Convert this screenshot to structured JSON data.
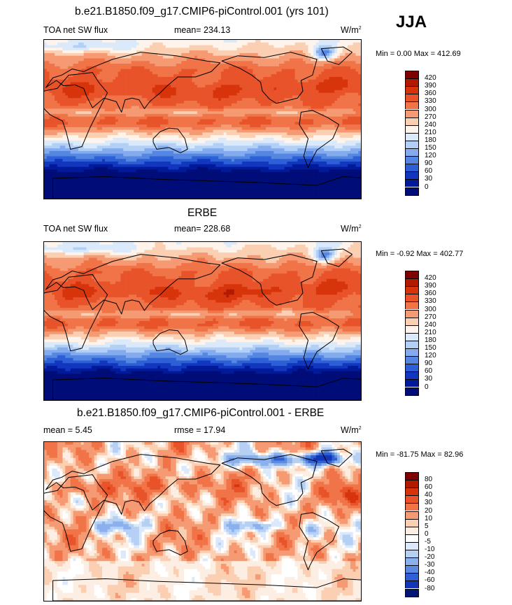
{
  "season": "JJA",
  "panels": [
    {
      "title": "b.e21.B1850.f09_g17.CMIP6-piControl.001 (yrs 101)",
      "left_label": "TOA net SW flux",
      "center_label": "mean= 234.13",
      "units_base": "W/m",
      "units_exp": "2",
      "minmax": "Min =   0.00 Max = 412.69",
      "levels": [
        "420",
        "390",
        "360",
        "330",
        "300",
        "270",
        "240",
        "210",
        "180",
        "150",
        "120",
        "90",
        "60",
        "30",
        "0"
      ],
      "palette": "abs"
    },
    {
      "title": "ERBE",
      "left_label": "TOA net SW flux",
      "center_label": "mean= 228.68",
      "units_base": "W/m",
      "units_exp": "2",
      "minmax": "Min = -0.92 Max = 402.77",
      "levels": [
        "420",
        "390",
        "360",
        "330",
        "300",
        "270",
        "240",
        "210",
        "180",
        "150",
        "120",
        "90",
        "60",
        "30",
        "0"
      ],
      "palette": "abs"
    },
    {
      "title": "b.e21.B1850.f09_g17.CMIP6-piControl.001 - ERBE",
      "left_label": "mean =   5.45",
      "center_label": "rmse =  17.94",
      "units_base": "W/m",
      "units_exp": "2",
      "minmax": "Min = -81.75 Max =  82.96",
      "levels": [
        "80",
        "60",
        "40",
        "30",
        "20",
        "10",
        "5",
        "0",
        "-5",
        "-10",
        "-20",
        "-30",
        "-40",
        "-60",
        "-80"
      ],
      "palette": "diff"
    }
  ],
  "colors": {
    "abs": [
      "#7f0000",
      "#b21a00",
      "#d8340c",
      "#e8532a",
      "#f07448",
      "#f59a72",
      "#fbcfb2",
      "#fff4ec",
      "#dbeafa",
      "#b2d0f5",
      "#83abee",
      "#5486e2",
      "#2d5fd6",
      "#1236be",
      "#001a9a",
      "#000d78"
    ],
    "diff": [
      "#7f0000",
      "#b21a00",
      "#d8340c",
      "#e8532a",
      "#f07448",
      "#f59a72",
      "#fbcfb2",
      "#fdeee4",
      "#ffffff",
      "#dce9fa",
      "#b6d0f4",
      "#8ab0ee",
      "#5b8ae2",
      "#2e5fd4",
      "#1336b8",
      "#001478"
    ]
  },
  "chart_data": [
    {
      "type": "heatmap",
      "title": "b.e21.B1850.f09_g17.CMIP6-piControl.001 (yrs 101)",
      "variable": "TOA net SW flux",
      "season": "JJA",
      "units": "W/m2",
      "mean": 234.13,
      "min": 0.0,
      "max": 412.69,
      "contour_levels": [
        0,
        30,
        60,
        90,
        120,
        150,
        180,
        210,
        240,
        270,
        300,
        330,
        360,
        390,
        420
      ]
    },
    {
      "type": "heatmap",
      "title": "ERBE",
      "variable": "TOA net SW flux",
      "season": "JJA",
      "units": "W/m2",
      "mean": 228.68,
      "min": -0.92,
      "max": 402.77,
      "contour_levels": [
        0,
        30,
        60,
        90,
        120,
        150,
        180,
        210,
        240,
        270,
        300,
        330,
        360,
        390,
        420
      ]
    },
    {
      "type": "heatmap",
      "title": "b.e21.B1850.f09_g17.CMIP6-piControl.001 - ERBE",
      "season": "JJA",
      "units": "W/m2",
      "mean": 5.45,
      "rmse": 17.94,
      "min": -81.75,
      "max": 82.96,
      "contour_levels": [
        -80,
        -60,
        -40,
        -30,
        -20,
        -10,
        -5,
        0,
        5,
        10,
        20,
        30,
        40,
        60,
        80
      ]
    }
  ]
}
